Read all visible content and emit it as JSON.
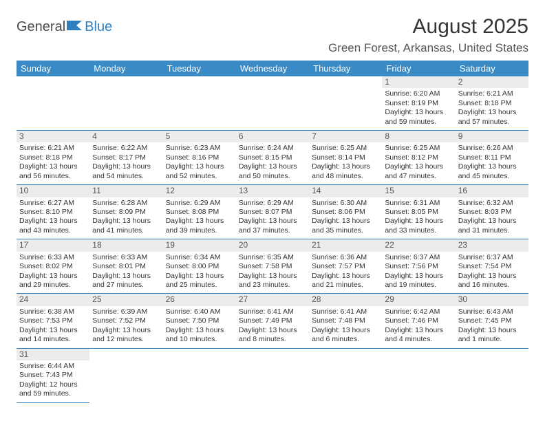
{
  "logo": {
    "part1": "General",
    "part2": "Blue"
  },
  "title": "August 2025",
  "location": "Green Forest, Arkansas, United States",
  "colors": {
    "header_bg": "#3a8ac6",
    "header_text": "#ffffff",
    "row_divider": "#2f7fbf",
    "daynum_bg": "#ececec",
    "body_text": "#333333",
    "logo_blue": "#2f7fbf",
    "logo_gray": "#4a4a4a"
  },
  "typography": {
    "title_fontsize": 30,
    "location_fontsize": 17,
    "header_fontsize": 13,
    "cell_fontsize": 10.5,
    "daynum_fontsize": 12
  },
  "weekdays": [
    "Sunday",
    "Monday",
    "Tuesday",
    "Wednesday",
    "Thursday",
    "Friday",
    "Saturday"
  ],
  "weeks": [
    [
      null,
      null,
      null,
      null,
      null,
      {
        "d": "1",
        "sr": "Sunrise: 6:20 AM",
        "ss": "Sunset: 8:19 PM",
        "dl1": "Daylight: 13 hours",
        "dl2": "and 59 minutes."
      },
      {
        "d": "2",
        "sr": "Sunrise: 6:21 AM",
        "ss": "Sunset: 8:18 PM",
        "dl1": "Daylight: 13 hours",
        "dl2": "and 57 minutes."
      }
    ],
    [
      {
        "d": "3",
        "sr": "Sunrise: 6:21 AM",
        "ss": "Sunset: 8:18 PM",
        "dl1": "Daylight: 13 hours",
        "dl2": "and 56 minutes."
      },
      {
        "d": "4",
        "sr": "Sunrise: 6:22 AM",
        "ss": "Sunset: 8:17 PM",
        "dl1": "Daylight: 13 hours",
        "dl2": "and 54 minutes."
      },
      {
        "d": "5",
        "sr": "Sunrise: 6:23 AM",
        "ss": "Sunset: 8:16 PM",
        "dl1": "Daylight: 13 hours",
        "dl2": "and 52 minutes."
      },
      {
        "d": "6",
        "sr": "Sunrise: 6:24 AM",
        "ss": "Sunset: 8:15 PM",
        "dl1": "Daylight: 13 hours",
        "dl2": "and 50 minutes."
      },
      {
        "d": "7",
        "sr": "Sunrise: 6:25 AM",
        "ss": "Sunset: 8:14 PM",
        "dl1": "Daylight: 13 hours",
        "dl2": "and 48 minutes."
      },
      {
        "d": "8",
        "sr": "Sunrise: 6:25 AM",
        "ss": "Sunset: 8:12 PM",
        "dl1": "Daylight: 13 hours",
        "dl2": "and 47 minutes."
      },
      {
        "d": "9",
        "sr": "Sunrise: 6:26 AM",
        "ss": "Sunset: 8:11 PM",
        "dl1": "Daylight: 13 hours",
        "dl2": "and 45 minutes."
      }
    ],
    [
      {
        "d": "10",
        "sr": "Sunrise: 6:27 AM",
        "ss": "Sunset: 8:10 PM",
        "dl1": "Daylight: 13 hours",
        "dl2": "and 43 minutes."
      },
      {
        "d": "11",
        "sr": "Sunrise: 6:28 AM",
        "ss": "Sunset: 8:09 PM",
        "dl1": "Daylight: 13 hours",
        "dl2": "and 41 minutes."
      },
      {
        "d": "12",
        "sr": "Sunrise: 6:29 AM",
        "ss": "Sunset: 8:08 PM",
        "dl1": "Daylight: 13 hours",
        "dl2": "and 39 minutes."
      },
      {
        "d": "13",
        "sr": "Sunrise: 6:29 AM",
        "ss": "Sunset: 8:07 PM",
        "dl1": "Daylight: 13 hours",
        "dl2": "and 37 minutes."
      },
      {
        "d": "14",
        "sr": "Sunrise: 6:30 AM",
        "ss": "Sunset: 8:06 PM",
        "dl1": "Daylight: 13 hours",
        "dl2": "and 35 minutes."
      },
      {
        "d": "15",
        "sr": "Sunrise: 6:31 AM",
        "ss": "Sunset: 8:05 PM",
        "dl1": "Daylight: 13 hours",
        "dl2": "and 33 minutes."
      },
      {
        "d": "16",
        "sr": "Sunrise: 6:32 AM",
        "ss": "Sunset: 8:03 PM",
        "dl1": "Daylight: 13 hours",
        "dl2": "and 31 minutes."
      }
    ],
    [
      {
        "d": "17",
        "sr": "Sunrise: 6:33 AM",
        "ss": "Sunset: 8:02 PM",
        "dl1": "Daylight: 13 hours",
        "dl2": "and 29 minutes."
      },
      {
        "d": "18",
        "sr": "Sunrise: 6:33 AM",
        "ss": "Sunset: 8:01 PM",
        "dl1": "Daylight: 13 hours",
        "dl2": "and 27 minutes."
      },
      {
        "d": "19",
        "sr": "Sunrise: 6:34 AM",
        "ss": "Sunset: 8:00 PM",
        "dl1": "Daylight: 13 hours",
        "dl2": "and 25 minutes."
      },
      {
        "d": "20",
        "sr": "Sunrise: 6:35 AM",
        "ss": "Sunset: 7:58 PM",
        "dl1": "Daylight: 13 hours",
        "dl2": "and 23 minutes."
      },
      {
        "d": "21",
        "sr": "Sunrise: 6:36 AM",
        "ss": "Sunset: 7:57 PM",
        "dl1": "Daylight: 13 hours",
        "dl2": "and 21 minutes."
      },
      {
        "d": "22",
        "sr": "Sunrise: 6:37 AM",
        "ss": "Sunset: 7:56 PM",
        "dl1": "Daylight: 13 hours",
        "dl2": "and 19 minutes."
      },
      {
        "d": "23",
        "sr": "Sunrise: 6:37 AM",
        "ss": "Sunset: 7:54 PM",
        "dl1": "Daylight: 13 hours",
        "dl2": "and 16 minutes."
      }
    ],
    [
      {
        "d": "24",
        "sr": "Sunrise: 6:38 AM",
        "ss": "Sunset: 7:53 PM",
        "dl1": "Daylight: 13 hours",
        "dl2": "and 14 minutes."
      },
      {
        "d": "25",
        "sr": "Sunrise: 6:39 AM",
        "ss": "Sunset: 7:52 PM",
        "dl1": "Daylight: 13 hours",
        "dl2": "and 12 minutes."
      },
      {
        "d": "26",
        "sr": "Sunrise: 6:40 AM",
        "ss": "Sunset: 7:50 PM",
        "dl1": "Daylight: 13 hours",
        "dl2": "and 10 minutes."
      },
      {
        "d": "27",
        "sr": "Sunrise: 6:41 AM",
        "ss": "Sunset: 7:49 PM",
        "dl1": "Daylight: 13 hours",
        "dl2": "and 8 minutes."
      },
      {
        "d": "28",
        "sr": "Sunrise: 6:41 AM",
        "ss": "Sunset: 7:48 PM",
        "dl1": "Daylight: 13 hours",
        "dl2": "and 6 minutes."
      },
      {
        "d": "29",
        "sr": "Sunrise: 6:42 AM",
        "ss": "Sunset: 7:46 PM",
        "dl1": "Daylight: 13 hours",
        "dl2": "and 4 minutes."
      },
      {
        "d": "30",
        "sr": "Sunrise: 6:43 AM",
        "ss": "Sunset: 7:45 PM",
        "dl1": "Daylight: 13 hours",
        "dl2": "and 1 minute."
      }
    ],
    [
      {
        "d": "31",
        "sr": "Sunrise: 6:44 AM",
        "ss": "Sunset: 7:43 PM",
        "dl1": "Daylight: 12 hours",
        "dl2": "and 59 minutes."
      },
      null,
      null,
      null,
      null,
      null,
      null
    ]
  ]
}
